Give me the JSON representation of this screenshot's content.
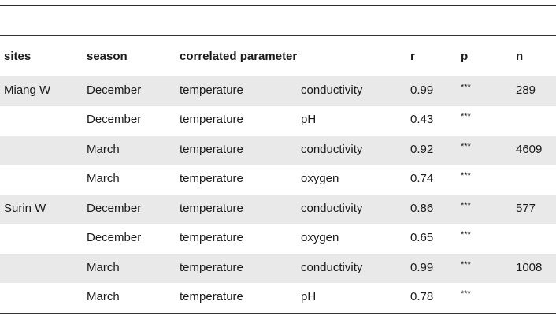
{
  "table": {
    "headers": {
      "sites": "sites",
      "season": "season",
      "correlated_parameter": "correlated parameter",
      "r": "r",
      "p": "p",
      "n": "n"
    },
    "rows": [
      {
        "site": "Miang W",
        "season": "December",
        "param1": "temperature",
        "param2": "conductivity",
        "r": "0.99",
        "p": "***",
        "n": "289",
        "shaded": true
      },
      {
        "site": "",
        "season": "December",
        "param1": "temperature",
        "param2": "pH",
        "r": "0.43",
        "p": "***",
        "n": "",
        "shaded": false
      },
      {
        "site": "",
        "season": "March",
        "param1": "temperature",
        "param2": "conductivity",
        "r": "0.92",
        "p": "***",
        "n": "4609",
        "shaded": true
      },
      {
        "site": "",
        "season": "March",
        "param1": "temperature",
        "param2": "oxygen",
        "r": "0.74",
        "p": "***",
        "n": "",
        "shaded": false
      },
      {
        "site": "Surin W",
        "season": "December",
        "param1": "temperature",
        "param2": "conductivity",
        "r": "0.86",
        "p": "***",
        "n": "577",
        "shaded": true
      },
      {
        "site": "",
        "season": "December",
        "param1": "temperature",
        "param2": "oxygen",
        "r": "0.65",
        "p": "***",
        "n": "",
        "shaded": false
      },
      {
        "site": "",
        "season": "March",
        "param1": "temperature",
        "param2": "conductivity",
        "r": "0.99",
        "p": "***",
        "n": "1008",
        "shaded": true
      },
      {
        "site": "",
        "season": "March",
        "param1": "temperature",
        "param2": "pH",
        "r": "0.78",
        "p": "***",
        "n": "",
        "shaded": false
      }
    ]
  },
  "colors": {
    "row_shade": "#e9e9e9",
    "rule": "#333333",
    "text": "#1a1a1a"
  }
}
